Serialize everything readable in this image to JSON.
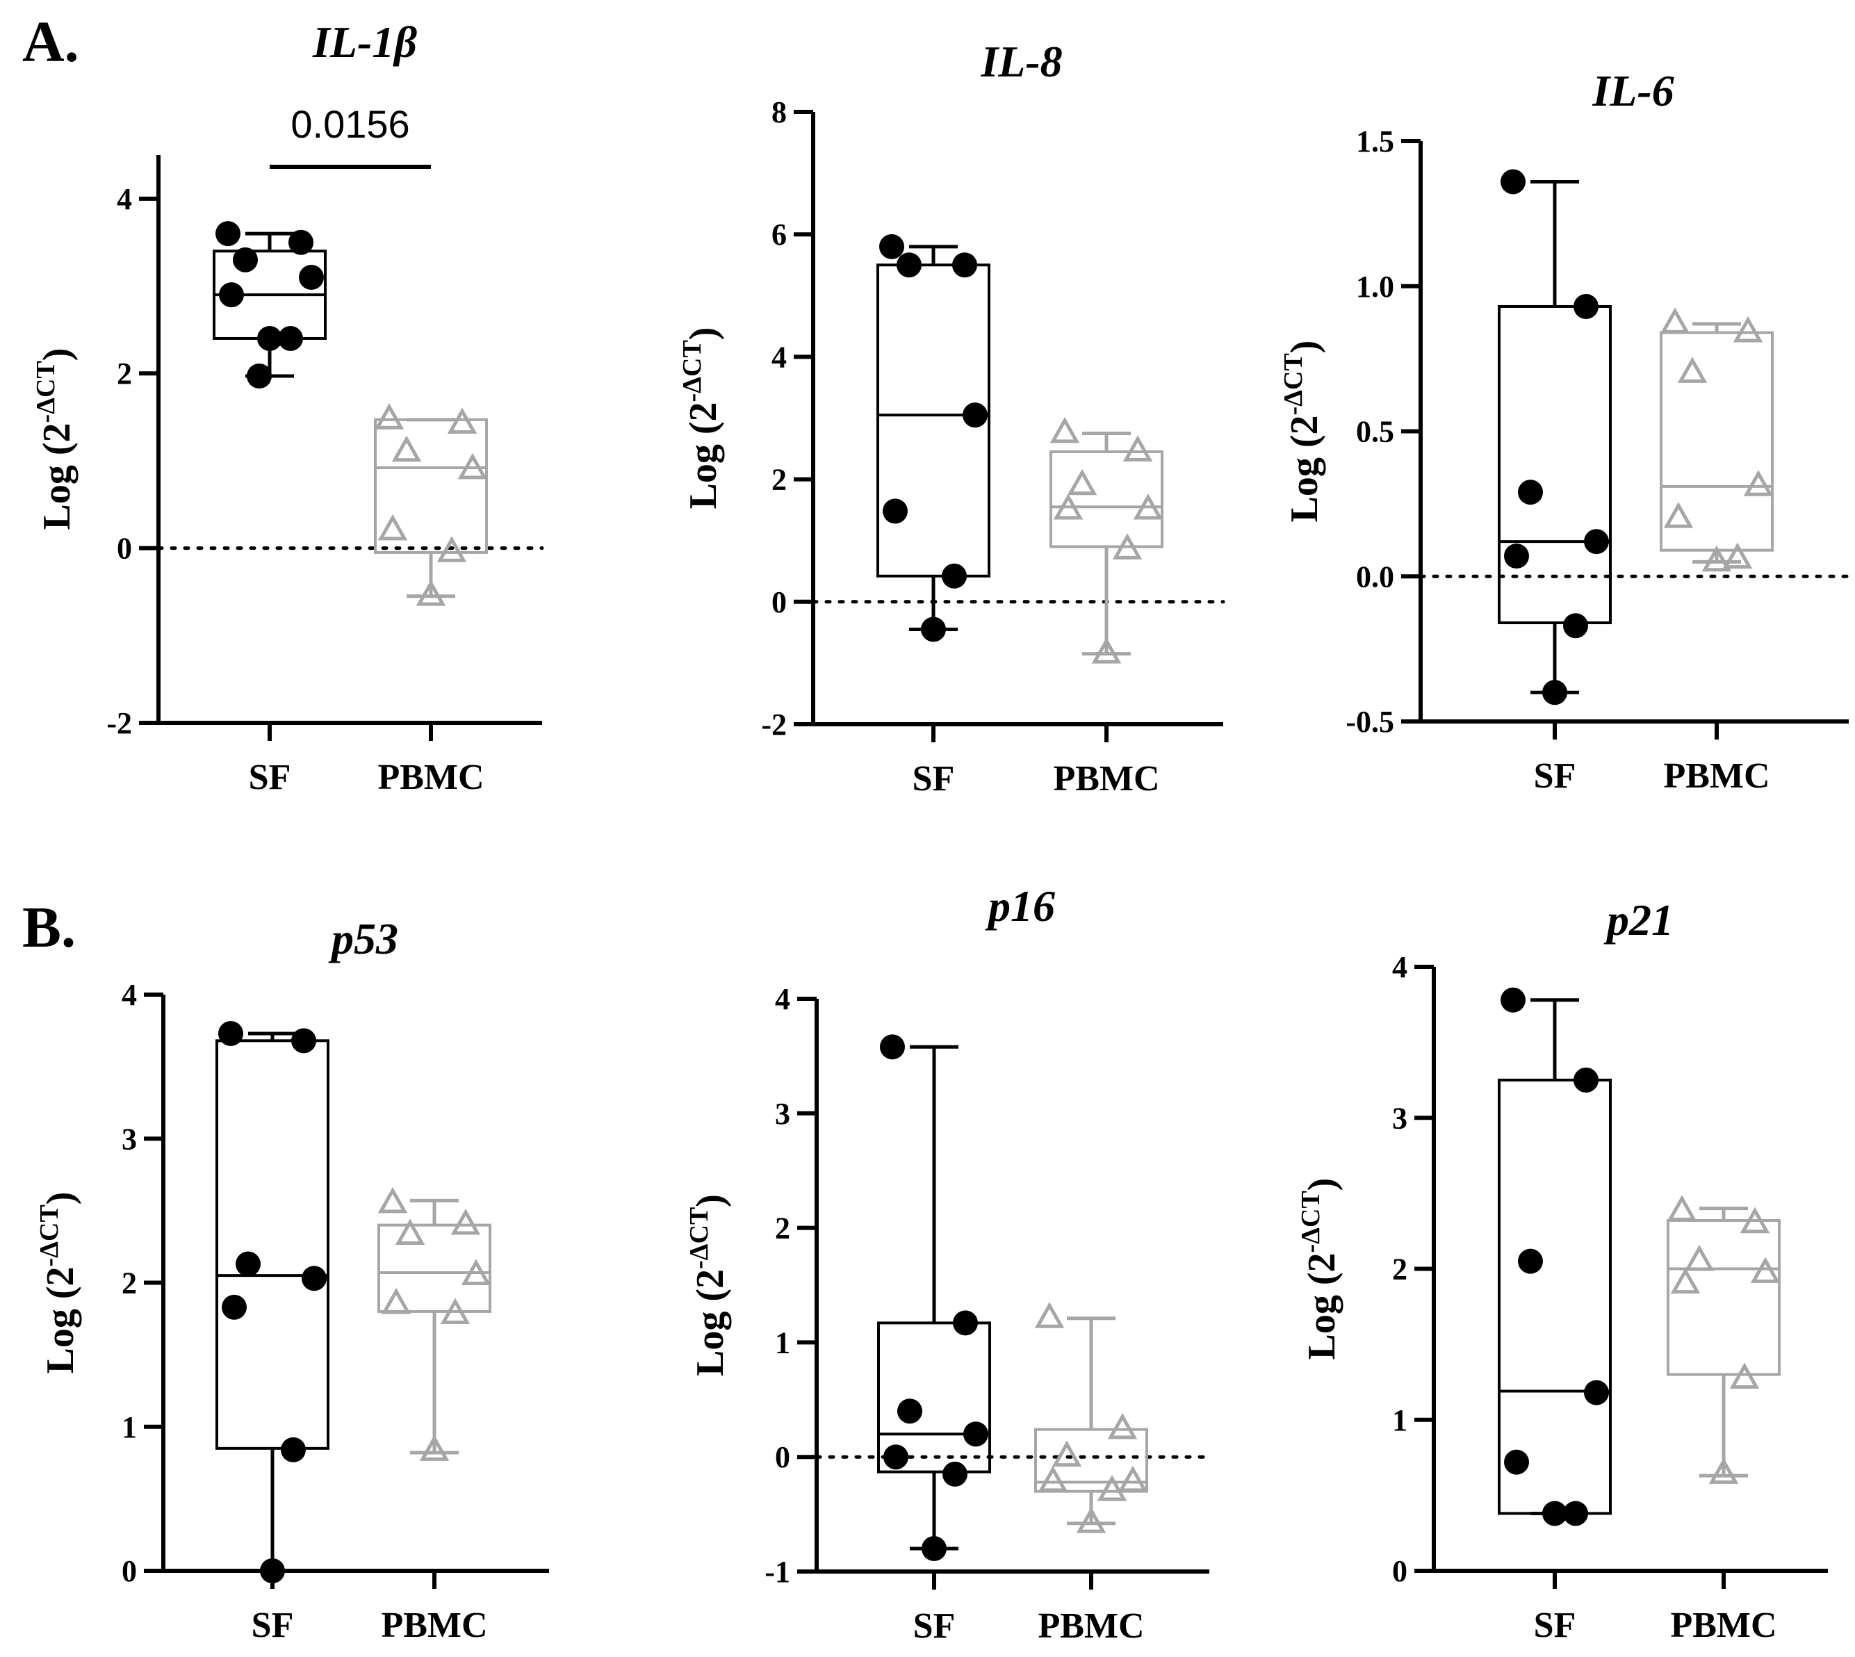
{
  "colors": {
    "sf": "#000000",
    "pbmc": "#a6a6a6"
  },
  "panels": {
    "A": "A.",
    "B": "B."
  },
  "chart_data": [
    {
      "type": "box",
      "title": "IL-1β",
      "ylabel": {
        "main": "Log (2",
        "sup": "-ΔCT",
        "close": ")"
      },
      "categories": [
        "SF",
        "PBMC"
      ],
      "yticks": [
        -2,
        0,
        2,
        4
      ],
      "ylim": [
        -2,
        4.5
      ],
      "yTickFormat": 0,
      "zero_line": true,
      "annotation": {
        "text": "0.0156",
        "from": "SF",
        "to": "PBMC"
      },
      "series": [
        {
          "name": "SF",
          "marker": "circle",
          "q1": 2.4,
          "median": 2.9,
          "q3": 3.4,
          "min": 1.97,
          "max": 3.6,
          "points": [
            3.6,
            3.5,
            3.3,
            3.1,
            2.9,
            2.4,
            2.4,
            1.97
          ]
        },
        {
          "name": "PBMC",
          "marker": "triangle",
          "q1": -0.05,
          "median": 0.92,
          "q3": 1.47,
          "min": -0.55,
          "max": 1.47,
          "points": [
            1.47,
            1.42,
            1.1,
            0.9,
            0.2,
            -0.05,
            -0.55
          ]
        }
      ]
    },
    {
      "type": "box",
      "title": "IL-8",
      "ylabel": {
        "main": "Log (2",
        "sup": "-ΔCT",
        "close": ")"
      },
      "categories": [
        "SF",
        "PBMC"
      ],
      "yticks": [
        -2,
        0,
        2,
        4,
        6,
        8
      ],
      "ylim": [
        -2,
        8
      ],
      "yTickFormat": 0,
      "zero_line": true,
      "series": [
        {
          "name": "SF",
          "marker": "circle",
          "q1": 0.42,
          "median": 3.05,
          "q3": 5.5,
          "min": -0.45,
          "max": 5.8,
          "points": [
            5.8,
            5.5,
            5.5,
            3.05,
            1.48,
            0.42,
            -0.45
          ]
        },
        {
          "name": "PBMC",
          "marker": "triangle",
          "q1": 0.9,
          "median": 1.55,
          "q3": 2.45,
          "min": -0.85,
          "max": 2.75,
          "points": [
            2.75,
            2.45,
            1.9,
            1.5,
            1.5,
            0.85,
            -0.85
          ]
        }
      ]
    },
    {
      "type": "box",
      "title": "IL-6",
      "ylabel": {
        "main": "Log (2",
        "sup": "-ΔCT",
        "close": ")"
      },
      "categories": [
        "SF",
        "PBMC"
      ],
      "yticks": [
        -0.5,
        0.0,
        0.5,
        1.0,
        1.5
      ],
      "ylim": [
        -0.5,
        1.5
      ],
      "yTickFormat": 1,
      "zero_line": true,
      "series": [
        {
          "name": "SF",
          "marker": "circle",
          "q1": -0.16,
          "median": 0.12,
          "q3": 0.93,
          "min": -0.4,
          "max": 1.36,
          "points": [
            1.36,
            0.93,
            0.29,
            0.12,
            0.07,
            -0.17,
            -0.4
          ]
        },
        {
          "name": "PBMC",
          "marker": "triangle",
          "q1": 0.09,
          "median": 0.31,
          "q3": 0.84,
          "min": 0.05,
          "max": 0.87,
          "points": [
            0.87,
            0.84,
            0.7,
            0.31,
            0.2,
            0.06,
            0.05
          ]
        }
      ]
    },
    {
      "type": "box",
      "title": "p53",
      "ylabel": {
        "main": "Log (2",
        "sup": "-ΔCT",
        "close": ")"
      },
      "categories": [
        "SF",
        "PBMC"
      ],
      "yticks": [
        0,
        1,
        2,
        3,
        4
      ],
      "ylim": [
        0,
        4
      ],
      "yTickFormat": 0,
      "zero_line": false,
      "series": [
        {
          "name": "SF",
          "marker": "circle",
          "q1": 0.85,
          "median": 2.05,
          "q3": 3.68,
          "min": 0.0,
          "max": 3.73,
          "points": [
            3.73,
            3.68,
            2.13,
            2.03,
            1.83,
            0.84,
            0.0
          ]
        },
        {
          "name": "PBMC",
          "marker": "triangle",
          "q1": 1.8,
          "median": 2.07,
          "q3": 2.4,
          "min": 0.82,
          "max": 2.57,
          "points": [
            2.55,
            2.4,
            2.33,
            2.05,
            1.85,
            1.78,
            0.83
          ]
        }
      ]
    },
    {
      "type": "box",
      "title": "p16",
      "ylabel": {
        "main": "Log (2",
        "sup": "-ΔCT",
        "close": ")"
      },
      "categories": [
        "SF",
        "PBMC"
      ],
      "yticks": [
        -1,
        0,
        1,
        2,
        3,
        4
      ],
      "ylim": [
        -1,
        4
      ],
      "yTickFormat": 0,
      "zero_line": true,
      "series": [
        {
          "name": "SF",
          "marker": "circle",
          "q1": -0.13,
          "median": 0.2,
          "q3": 1.17,
          "min": -0.8,
          "max": 3.58,
          "points": [
            3.58,
            1.17,
            0.4,
            0.2,
            0.0,
            -0.15,
            -0.8
          ]
        },
        {
          "name": "PBMC",
          "marker": "triangle",
          "q1": -0.3,
          "median": -0.22,
          "q3": 0.24,
          "min": -0.58,
          "max": 1.21,
          "points": [
            1.21,
            0.24,
            0.0,
            -0.22,
            -0.22,
            -0.3,
            -0.58
          ]
        }
      ]
    },
    {
      "type": "box",
      "title": "p21",
      "ylabel": {
        "main": "Log (2",
        "sup": "-ΔCT",
        "close": ")"
      },
      "categories": [
        "SF",
        "PBMC"
      ],
      "yticks": [
        0,
        1,
        2,
        3,
        4
      ],
      "ylim": [
        0,
        4
      ],
      "yTickFormat": 0,
      "zero_line": false,
      "series": [
        {
          "name": "SF",
          "marker": "circle",
          "q1": 0.38,
          "median": 1.19,
          "q3": 3.25,
          "min": 0.38,
          "max": 3.78,
          "points": [
            3.78,
            3.25,
            2.05,
            1.18,
            0.72,
            0.38,
            0.38
          ]
        },
        {
          "name": "PBMC",
          "marker": "triangle",
          "q1": 1.3,
          "median": 2.0,
          "q3": 2.32,
          "min": 0.63,
          "max": 2.4,
          "points": [
            2.38,
            2.3,
            2.05,
            1.97,
            1.9,
            1.27,
            0.64
          ]
        }
      ]
    }
  ]
}
